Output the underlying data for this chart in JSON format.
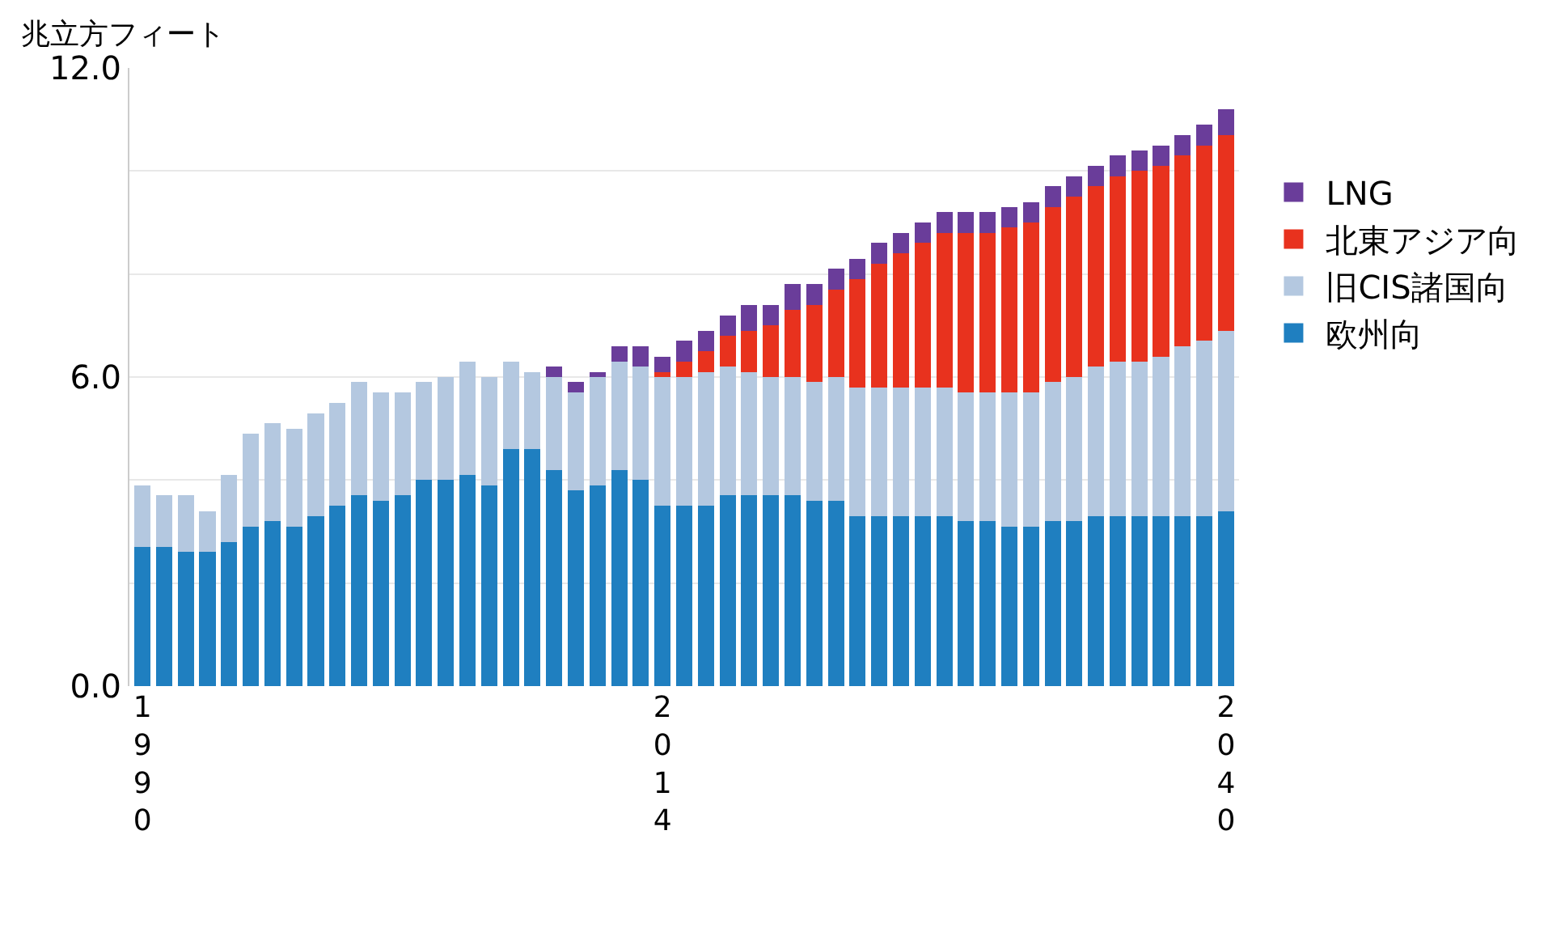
{
  "chart_data": {
    "type": "bar",
    "stacked": true,
    "ylabel": "兆立方フィート",
    "categories": [
      "1990",
      null,
      null,
      null,
      null,
      null,
      null,
      null,
      null,
      null,
      null,
      null,
      null,
      null,
      null,
      null,
      null,
      null,
      null,
      null,
      null,
      null,
      null,
      null,
      "2014",
      null,
      null,
      null,
      null,
      null,
      null,
      null,
      null,
      null,
      null,
      null,
      null,
      null,
      null,
      null,
      null,
      null,
      null,
      null,
      null,
      null,
      null,
      null,
      null,
      null,
      "2040"
    ],
    "series": [
      {
        "name": "欧州向",
        "color": "#1f7fc0",
        "values": [
          2.7,
          2.7,
          2.6,
          2.6,
          2.8,
          3.1,
          3.2,
          3.1,
          3.3,
          3.5,
          3.7,
          3.6,
          3.7,
          4.0,
          4.0,
          4.1,
          3.9,
          4.6,
          4.6,
          4.2,
          3.8,
          3.9,
          4.2,
          4.0,
          3.5,
          3.5,
          3.5,
          3.7,
          3.7,
          3.7,
          3.7,
          3.6,
          3.6,
          3.3,
          3.3,
          3.3,
          3.3,
          3.3,
          3.2,
          3.2,
          3.1,
          3.1,
          3.2,
          3.2,
          3.3,
          3.3,
          3.3,
          3.3,
          3.3,
          3.3,
          3.4
        ]
      },
      {
        "name": "旧CIS諸国向",
        "color": "#b4c8e0",
        "values": [
          1.2,
          1.0,
          1.1,
          0.8,
          1.3,
          1.8,
          1.9,
          1.9,
          2.0,
          2.0,
          2.2,
          2.1,
          2.0,
          1.9,
          2.0,
          2.2,
          2.1,
          1.7,
          1.5,
          1.8,
          1.9,
          2.1,
          2.1,
          2.2,
          2.5,
          2.5,
          2.6,
          2.5,
          2.4,
          2.3,
          2.3,
          2.3,
          2.4,
          2.5,
          2.5,
          2.5,
          2.5,
          2.5,
          2.5,
          2.5,
          2.6,
          2.6,
          2.7,
          2.8,
          2.9,
          3.0,
          3.0,
          3.1,
          3.3,
          3.4,
          3.5
        ]
      },
      {
        "name": "北東アジア向",
        "color": "#e8321e",
        "values": [
          0,
          0,
          0,
          0,
          0,
          0,
          0,
          0,
          0,
          0,
          0,
          0,
          0,
          0,
          0,
          0,
          0,
          0,
          0,
          0,
          0,
          0,
          0,
          0,
          0.1,
          0.3,
          0.4,
          0.6,
          0.8,
          1.0,
          1.3,
          1.5,
          1.7,
          2.1,
          2.4,
          2.6,
          2.8,
          3.0,
          3.1,
          3.1,
          3.2,
          3.3,
          3.4,
          3.5,
          3.5,
          3.6,
          3.7,
          3.7,
          3.7,
          3.8,
          3.8
        ]
      },
      {
        "name": "LNG",
        "color": "#6a3d9a",
        "values": [
          0,
          0,
          0,
          0,
          0,
          0,
          0,
          0,
          0,
          0,
          0,
          0,
          0,
          0,
          0,
          0,
          0,
          0,
          0,
          0.2,
          0.2,
          0.1,
          0.3,
          0.4,
          0.3,
          0.4,
          0.4,
          0.4,
          0.5,
          0.4,
          0.5,
          0.4,
          0.4,
          0.4,
          0.4,
          0.4,
          0.4,
          0.4,
          0.4,
          0.4,
          0.4,
          0.4,
          0.4,
          0.4,
          0.4,
          0.4,
          0.4,
          0.4,
          0.4,
          0.4,
          0.5
        ]
      }
    ],
    "ylim": [
      0,
      12
    ],
    "yticks": [
      {
        "value": 0,
        "label": "0.0"
      },
      {
        "value": 2,
        "label": null
      },
      {
        "value": 4,
        "label": null
      },
      {
        "value": 6,
        "label": "6.0"
      },
      {
        "value": 8,
        "label": null
      },
      {
        "value": 10,
        "label": null
      },
      {
        "value": 12,
        "label": "12.0"
      }
    ],
    "grid": "y",
    "legend": "right"
  }
}
